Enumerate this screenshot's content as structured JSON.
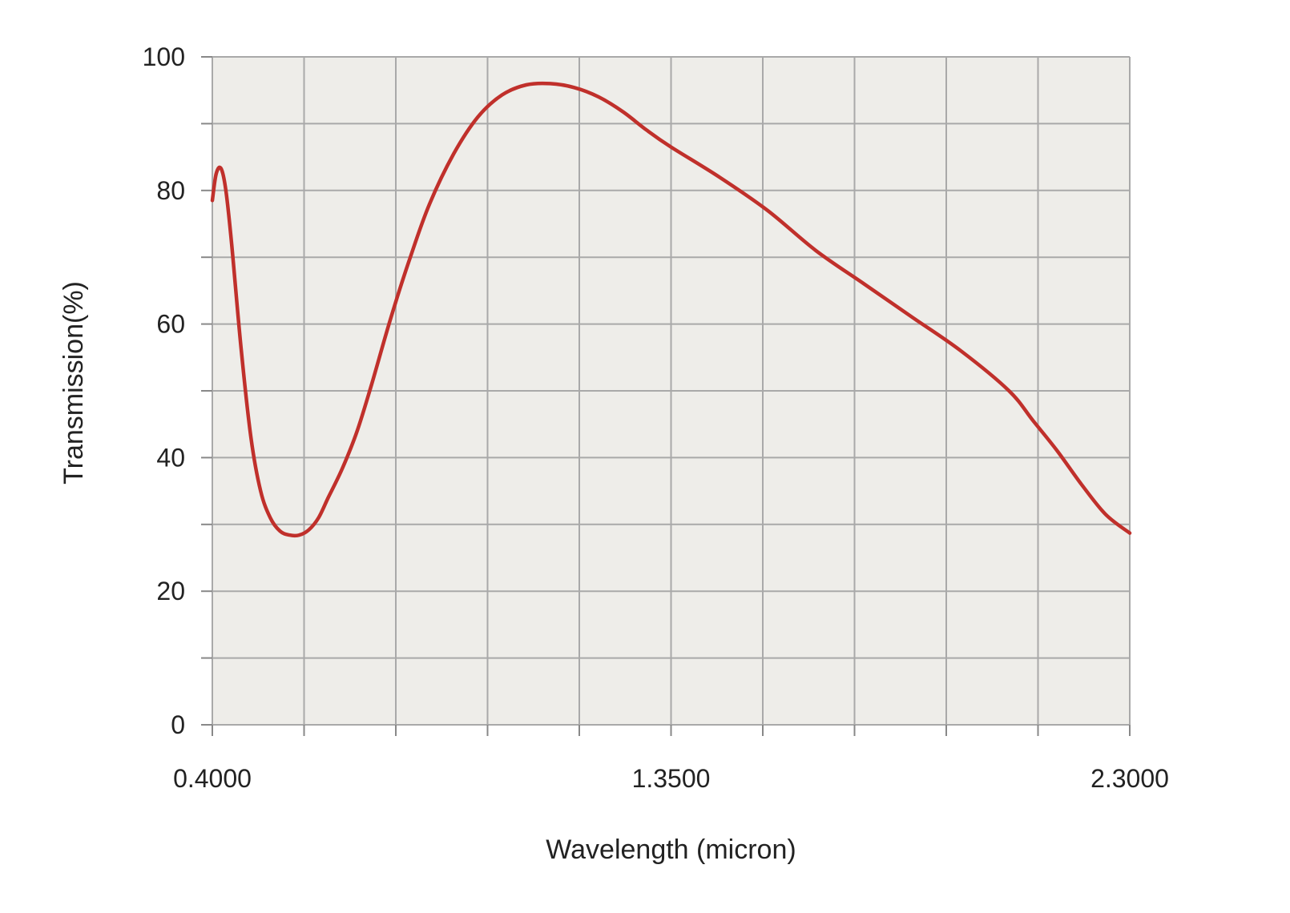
{
  "chart_data": {
    "type": "line",
    "xlabel": "Wavelength (micron)",
    "ylabel": "Transmission(%)",
    "xlim": [
      0.4,
      2.3
    ],
    "ylim": [
      0,
      100
    ],
    "x_tick_labels": [
      {
        "value": 0.4,
        "label": "0.4000"
      },
      {
        "value": 1.35,
        "label": "1.3500"
      },
      {
        "value": 2.3,
        "label": "2.3000"
      }
    ],
    "x_gridlines": [
      0.4,
      0.59,
      0.78,
      0.97,
      1.16,
      1.35,
      1.54,
      1.73,
      1.92,
      2.11,
      2.3
    ],
    "y_tick_labels": [
      {
        "value": 0,
        "label": "0"
      },
      {
        "value": 20,
        "label": "20"
      },
      {
        "value": 40,
        "label": "40"
      },
      {
        "value": 60,
        "label": "60"
      },
      {
        "value": 80,
        "label": "80"
      },
      {
        "value": 100,
        "label": "100"
      }
    ],
    "y_gridlines": [
      0,
      10,
      20,
      30,
      40,
      50,
      60,
      70,
      80,
      90,
      100
    ],
    "grid": true,
    "legend": "none",
    "colors": {
      "line": "#c0302b",
      "plot_bg": "#eeede9",
      "grid": "#a9a9a9"
    },
    "series": [
      {
        "x": [
          0.4,
          0.408,
          0.418,
          0.428,
          0.44,
          0.46,
          0.48,
          0.5,
          0.52,
          0.54,
          0.56,
          0.58,
          0.6,
          0.62,
          0.64,
          0.67,
          0.7,
          0.73,
          0.77,
          0.81,
          0.85,
          0.9,
          0.95,
          1.0,
          1.05,
          1.1,
          1.15,
          1.2,
          1.25,
          1.3,
          1.35,
          1.45,
          1.55,
          1.65,
          1.75,
          1.85,
          1.95,
          2.05,
          2.1,
          2.15,
          2.2,
          2.25,
          2.3
        ],
        "y": [
          78.5,
          82.5,
          83.3,
          80,
          72,
          56,
          43,
          35,
          31,
          29,
          28.4,
          28.4,
          29.2,
          31,
          34,
          38.5,
          44,
          51,
          61,
          70,
          78,
          85.5,
          91,
          94.3,
          95.8,
          96,
          95.4,
          94,
          91.8,
          89,
          86.5,
          82,
          77,
          71,
          66,
          61,
          56,
          50,
          45.5,
          41,
          36,
          31.5,
          28.7
        ]
      }
    ]
  }
}
